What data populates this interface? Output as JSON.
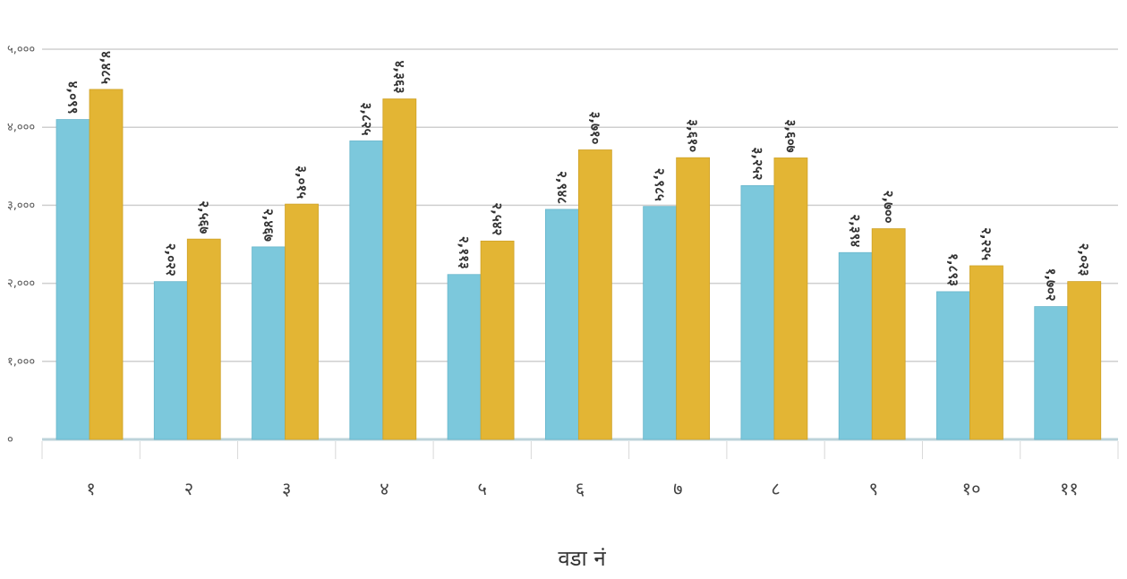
{
  "chart_data": {
    "type": "bar",
    "title": "",
    "xlabel": "वडा नं",
    "ylabel": "",
    "ylim": [
      0,
      5000
    ],
    "y_ticks": [
      0,
      1000,
      2000,
      3000,
      4000,
      5000
    ],
    "y_tick_labels": [
      "०",
      "१,०००",
      "२,०००",
      "३,०००",
      "४,०००",
      "५,०००"
    ],
    "grid": true,
    "legend": "none",
    "categories": [
      "१",
      "२",
      "३",
      "४",
      "५",
      "६",
      "७",
      "८",
      "९",
      "१०",
      "११"
    ],
    "series": [
      {
        "color": "#7cc8dc",
        "values": [
          4099,
          2022,
          2467,
          3825,
          2113,
          2948,
          2985,
          3252,
          2394,
          1893,
          1702
        ],
        "labels": [
          "४,०९९",
          "२,०२२",
          "२,४६७",
          "३,८२५",
          "२,११३",
          "२,९४८",
          "२,९८५",
          "३,२५२",
          "२,३९४",
          "१,८९३",
          "१,७०२"
        ]
      },
      {
        "color": "#e3b534",
        "values": [
          4485,
          2567,
          3015,
          4363,
          2542,
          3710,
          3610,
          3607,
          2700,
          2225,
          2023
        ],
        "labels": [
          "४,४८५",
          "२,५६७",
          "३,०१५",
          "४,३६३",
          "२,५४२",
          "३,७१०",
          "३,६१०",
          "३,६०७",
          "२,७००",
          "२,२२५",
          "२,०२३"
        ]
      }
    ]
  }
}
